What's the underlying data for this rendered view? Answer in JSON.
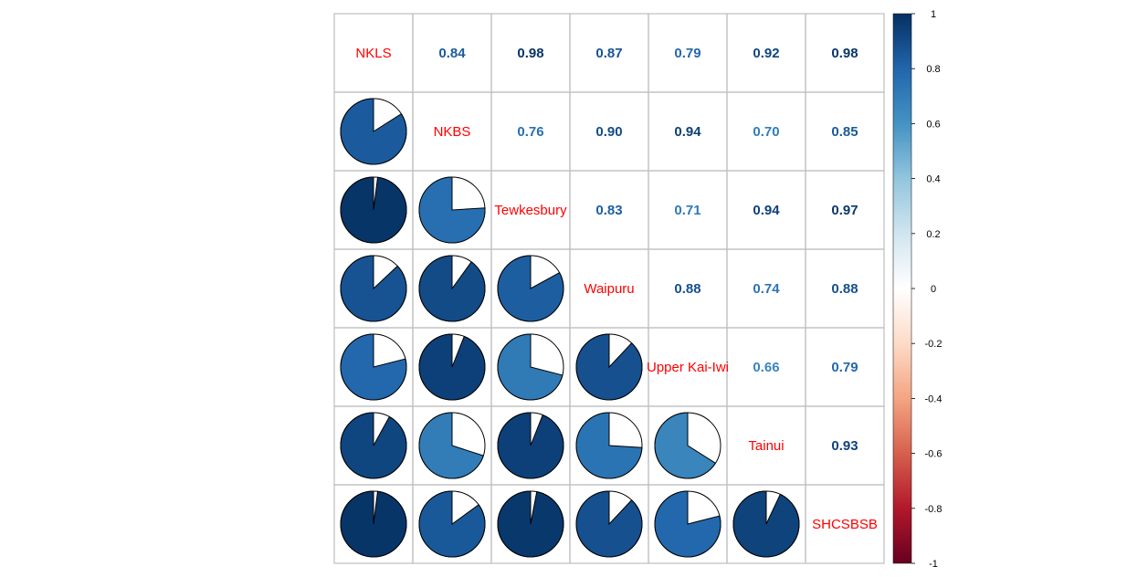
{
  "chart_data": {
    "type": "correlation-matrix",
    "variables": [
      "NKLS",
      "NKBS",
      "Tewkesbury",
      "Waipuru",
      "Upper Kai-Iwi",
      "Tainui",
      "SHCSBSB"
    ],
    "matrix": [
      [
        1.0,
        0.84,
        0.98,
        0.87,
        0.79,
        0.92,
        0.98
      ],
      [
        0.84,
        1.0,
        0.76,
        0.9,
        0.94,
        0.7,
        0.85
      ],
      [
        0.98,
        0.76,
        1.0,
        0.83,
        0.71,
        0.94,
        0.97
      ],
      [
        0.87,
        0.9,
        0.83,
        1.0,
        0.88,
        0.74,
        0.88
      ],
      [
        0.79,
        0.94,
        0.71,
        0.88,
        1.0,
        0.66,
        0.79
      ],
      [
        0.92,
        0.7,
        0.94,
        0.74,
        0.66,
        1.0,
        0.93
      ],
      [
        0.98,
        0.85,
        0.97,
        0.88,
        0.79,
        0.93,
        1.0
      ]
    ],
    "upper_labels": [
      [
        "0.84",
        "0.98",
        "0.87",
        "0.79",
        "0.92",
        "0.98"
      ],
      [
        "0.76",
        "0.90",
        "0.94",
        "0.70",
        "0.85"
      ],
      [
        "0.83",
        "0.71",
        "0.94",
        "0.97"
      ],
      [
        "0.88",
        "0.74",
        "0.88"
      ],
      [
        "0.66",
        "0.79"
      ],
      [
        "0.93"
      ]
    ],
    "upper_method": "number",
    "lower_method": "pie",
    "diagonal_label_color": "#ff0000",
    "colorbar": {
      "range": [
        -1,
        1
      ],
      "ticks": [
        "1",
        "0.8",
        "0.6",
        "0.4",
        "0.2",
        "0",
        "-0.2",
        "-0.4",
        "-0.6",
        "-0.8",
        "-1"
      ],
      "colors": [
        "#67001F",
        "#B2182B",
        "#D6604D",
        "#F4A582",
        "#FDDBC7",
        "#FFFFFF",
        "#D1E5F0",
        "#92C5DE",
        "#4393C3",
        "#2166AC",
        "#053061"
      ]
    },
    "grid": true
  }
}
